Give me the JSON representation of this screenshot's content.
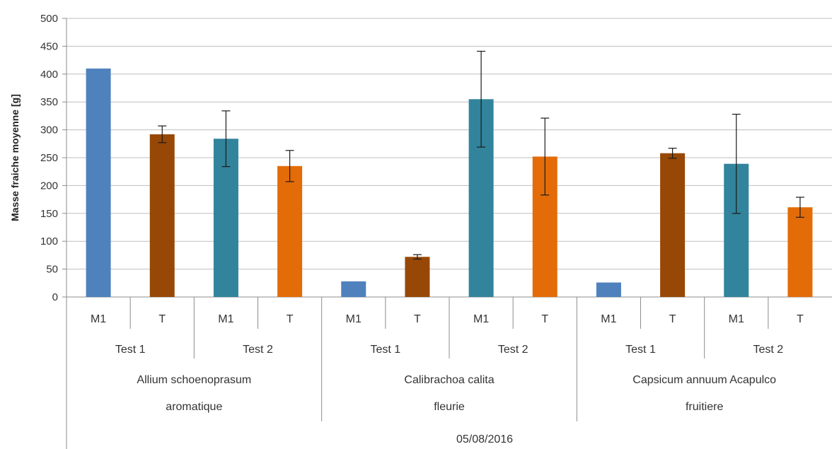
{
  "chart_data": {
    "type": "bar",
    "ylabel": "Masse fraiche moyenne [g]",
    "ylim": [
      0,
      500
    ],
    "yticks": [
      0,
      50,
      100,
      150,
      200,
      250,
      300,
      350,
      400,
      450,
      500
    ],
    "grid": true,
    "date_label": "05/08/2016",
    "groups": [
      {
        "name_lines": [
          "Allium schoenoprasum",
          "aromatique"
        ],
        "tests": [
          {
            "name": "Test 1",
            "bars": [
              {
                "label": "M1",
                "value": 410,
                "error": 0,
                "color": "#4f81bd"
              },
              {
                "label": "T",
                "value": 292,
                "error": 15,
                "color": "#974806"
              }
            ]
          },
          {
            "name": "Test 2",
            "bars": [
              {
                "label": "M1",
                "value": 284,
                "error": 50,
                "color": "#31849b"
              },
              {
                "label": "T",
                "value": 235,
                "error": 28,
                "color": "#e36c09"
              }
            ]
          }
        ]
      },
      {
        "name_lines": [
          "Calibrachoa calita",
          "fleurie"
        ],
        "tests": [
          {
            "name": "Test 1",
            "bars": [
              {
                "label": "M1",
                "value": 28,
                "error": 0,
                "color": "#4f81bd"
              },
              {
                "label": "T",
                "value": 72,
                "error": 4,
                "color": "#974806"
              }
            ]
          },
          {
            "name": "Test 2",
            "bars": [
              {
                "label": "M1",
                "value": 355,
                "error": 86,
                "color": "#31849b"
              },
              {
                "label": "T",
                "value": 252,
                "error": 69,
                "color": "#e36c09"
              }
            ]
          }
        ]
      },
      {
        "name_lines": [
          "Capsicum annuum Acapulco",
          "fruitiere"
        ],
        "tests": [
          {
            "name": "Test 1",
            "bars": [
              {
                "label": "M1",
                "value": 26,
                "error": 0,
                "color": "#4f81bd"
              },
              {
                "label": "T",
                "value": 258,
                "error": 9,
                "color": "#974806"
              }
            ]
          },
          {
            "name": "Test 2",
            "bars": [
              {
                "label": "M1",
                "value": 239,
                "error": 89,
                "color": "#31849b"
              },
              {
                "label": "T",
                "value": 161,
                "error": 18,
                "color": "#e36c09"
              }
            ]
          }
        ]
      }
    ]
  }
}
